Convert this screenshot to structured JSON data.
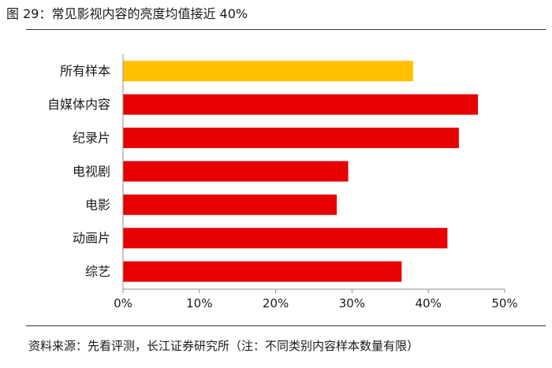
{
  "figure": {
    "title": "图 29：常见影视内容的亮度均值接近 40%",
    "source": "资料来源：先看评测，长江证券研究所（注：不同类别内容样本数量有限）"
  },
  "chart_data": {
    "type": "bar",
    "orientation": "horizontal",
    "categories": [
      "所有样本",
      "自媒体内容",
      "纪录片",
      "电视剧",
      "电影",
      "动画片",
      "综艺"
    ],
    "values": [
      0.38,
      0.465,
      0.44,
      0.295,
      0.28,
      0.425,
      0.365
    ],
    "colors": [
      "#FFC000",
      "#E60000",
      "#E60000",
      "#E60000",
      "#E60000",
      "#E60000",
      "#E60000"
    ],
    "xlim": [
      0,
      0.5
    ],
    "xticks": [
      0,
      0.1,
      0.2,
      0.3,
      0.4,
      0.5
    ],
    "xtick_labels": [
      "0%",
      "10%",
      "20%",
      "30%",
      "40%",
      "50%"
    ],
    "grid": false,
    "legend": "none"
  }
}
